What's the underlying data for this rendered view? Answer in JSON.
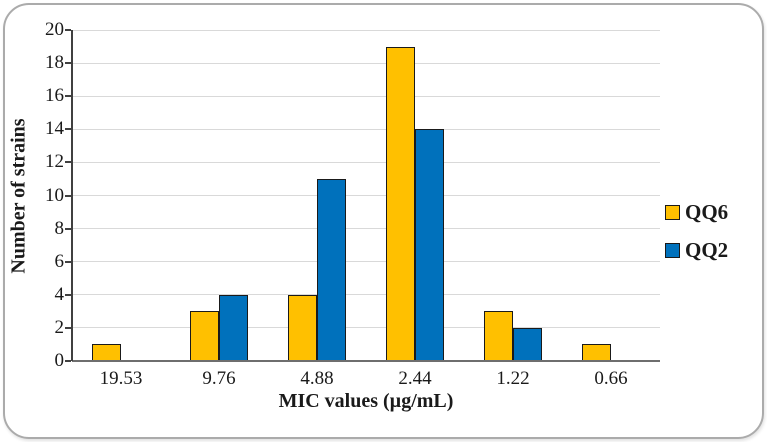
{
  "figure": {
    "background": "#ffffff",
    "border_color": "#ababab"
  },
  "chart_data": {
    "type": "bar",
    "title": "",
    "categories": [
      "19.53",
      "9.76",
      "4.88",
      "2.44",
      "1.22",
      "0.66"
    ],
    "series": [
      {
        "name": "QQ6",
        "color": "#FFC000",
        "values": [
          1,
          3,
          4,
          19,
          3,
          1
        ]
      },
      {
        "name": "QQ2",
        "color": "#0071BC",
        "values": [
          0,
          4,
          11,
          14,
          2,
          0
        ]
      }
    ],
    "xlabel": "MIC values (µg/mL)",
    "ylabel": "Number of strains",
    "ylim": [
      0,
      20
    ],
    "yticks": [
      0,
      2,
      4,
      6,
      8,
      10,
      12,
      14,
      16,
      18,
      20
    ],
    "grid": "horizontal",
    "legend_position": "right",
    "gridline_color": "#d9d9d9",
    "bar_border_color": "#1a1a1a",
    "axis_color": "#595959"
  }
}
